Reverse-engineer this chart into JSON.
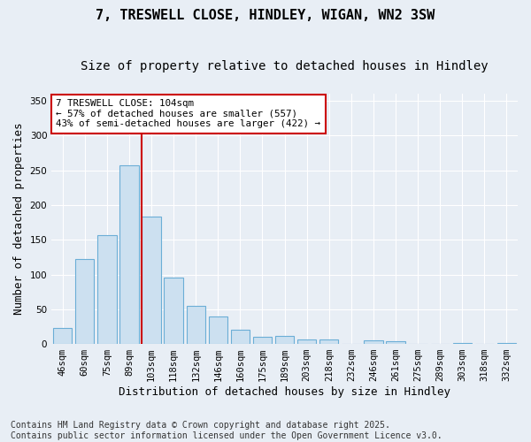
{
  "title": "7, TRESWELL CLOSE, HINDLEY, WIGAN, WN2 3SW",
  "subtitle": "Size of property relative to detached houses in Hindley",
  "xlabel": "Distribution of detached houses by size in Hindley",
  "ylabel": "Number of detached properties",
  "categories": [
    "46sqm",
    "60sqm",
    "75sqm",
    "89sqm",
    "103sqm",
    "118sqm",
    "132sqm",
    "146sqm",
    "160sqm",
    "175sqm",
    "189sqm",
    "203sqm",
    "218sqm",
    "232sqm",
    "246sqm",
    "261sqm",
    "275sqm",
    "289sqm",
    "303sqm",
    "318sqm",
    "332sqm"
  ],
  "values": [
    23,
    122,
    157,
    257,
    184,
    95,
    55,
    39,
    20,
    10,
    11,
    7,
    6,
    0,
    5,
    4,
    0,
    0,
    1,
    0,
    1
  ],
  "bar_color": "#cce0f0",
  "bar_edge_color": "#6baed6",
  "highlight_line_index": 4,
  "highlight_line_color": "#cc0000",
  "annotation_text": "7 TRESWELL CLOSE: 104sqm\n← 57% of detached houses are smaller (557)\n43% of semi-detached houses are larger (422) →",
  "annotation_box_color": "#ffffff",
  "annotation_box_edge": "#cc0000",
  "ylim": [
    0,
    360
  ],
  "yticks": [
    0,
    50,
    100,
    150,
    200,
    250,
    300,
    350
  ],
  "background_color": "#e8eef5",
  "plot_bg_color": "#e8eef5",
  "grid_color": "#ffffff",
  "footer": "Contains HM Land Registry data © Crown copyright and database right 2025.\nContains public sector information licensed under the Open Government Licence v3.0.",
  "title_fontsize": 11,
  "subtitle_fontsize": 10,
  "xlabel_fontsize": 9,
  "ylabel_fontsize": 9,
  "tick_fontsize": 7.5,
  "footer_fontsize": 7
}
